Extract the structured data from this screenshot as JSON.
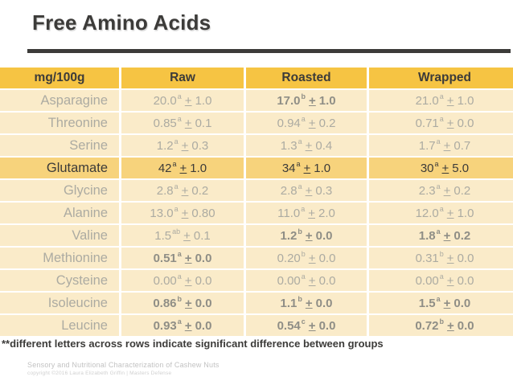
{
  "title": "Free Amino Acids",
  "colors": {
    "header_gold": "#F6C443",
    "highlight_amber": "#F7D37C",
    "row_cream": "#FAEBC9",
    "text_dark": "#3C3B39",
    "text_gray": "#ACABA2",
    "text_bold_gray": "#8F8E86"
  },
  "table": {
    "columns": [
      "mg/100g",
      "Raw",
      "Roasted",
      "Wrapped"
    ],
    "plus_minus_symbol": "+",
    "rows": [
      {
        "name": "Asparagine",
        "highlight": false,
        "cells": [
          {
            "value": "20.0",
            "sup": "a",
            "sd": "1.0",
            "bold": false
          },
          {
            "value": "17.0",
            "sup": "b",
            "sd": "1.0",
            "bold": true
          },
          {
            "value": "21.0",
            "sup": "a",
            "sd": "1.0",
            "bold": false
          }
        ]
      },
      {
        "name": "Threonine",
        "highlight": false,
        "cells": [
          {
            "value": "0.85",
            "sup": "a",
            "sd": "0.1",
            "bold": false
          },
          {
            "value": "0.94",
            "sup": "a",
            "sd": "0.2",
            "bold": false
          },
          {
            "value": "0.71",
            "sup": "a",
            "sd": "0.0",
            "bold": false
          }
        ]
      },
      {
        "name": "Serine",
        "highlight": false,
        "cells": [
          {
            "value": "1.2",
            "sup": "a",
            "sd": "0.3",
            "bold": false
          },
          {
            "value": "1.3",
            "sup": "a",
            "sd": "0.4",
            "bold": false
          },
          {
            "value": "1.7",
            "sup": "a",
            "sd": "0.7",
            "bold": false
          }
        ]
      },
      {
        "name": "Glutamate",
        "highlight": true,
        "cells": [
          {
            "value": "42",
            "sup": "a",
            "sd": "1.0",
            "bold": false
          },
          {
            "value": "34",
            "sup": "a",
            "sd": "1.0",
            "bold": false
          },
          {
            "value": "30",
            "sup": "a",
            "sd": "5.0",
            "bold": false
          }
        ]
      },
      {
        "name": "Glycine",
        "highlight": false,
        "cells": [
          {
            "value": "2.8",
            "sup": "a",
            "sd": "0.2",
            "bold": false
          },
          {
            "value": "2.8",
            "sup": "a",
            "sd": "0.3",
            "bold": false
          },
          {
            "value": "2.3",
            "sup": "a",
            "sd": "0.2",
            "bold": false
          }
        ]
      },
      {
        "name": "Alanine",
        "highlight": false,
        "cells": [
          {
            "value": "13.0",
            "sup": "a",
            "sd": "0.80",
            "bold": false
          },
          {
            "value": "11.0",
            "sup": "a",
            "sd": "2.0",
            "bold": false
          },
          {
            "value": "12.0",
            "sup": "a",
            "sd": "1.0",
            "bold": false
          }
        ]
      },
      {
        "name": "Valine",
        "highlight": false,
        "cells": [
          {
            "value": "1.5",
            "sup": "ab",
            "sd": "0.1",
            "bold": false
          },
          {
            "value": "1.2",
            "sup": "b",
            "sd": "0.0",
            "bold": true
          },
          {
            "value": "1.8",
            "sup": "a",
            "sd": "0.2",
            "bold": true
          }
        ]
      },
      {
        "name": "Methionine",
        "highlight": false,
        "cells": [
          {
            "value": "0.51",
            "sup": "a",
            "sd": "0.0",
            "bold": true
          },
          {
            "value": "0.20",
            "sup": "b",
            "sd": "0.0",
            "bold": false
          },
          {
            "value": "0.31",
            "sup": "b",
            "sd": "0.0",
            "bold": false
          }
        ]
      },
      {
        "name": "Cysteine",
        "highlight": false,
        "cells": [
          {
            "value": "0.00",
            "sup": "a",
            "sd": "0.0",
            "bold": false
          },
          {
            "value": "0.00",
            "sup": "a",
            "sd": "0.0",
            "bold": false
          },
          {
            "value": "0.00",
            "sup": "a",
            "sd": "0.0",
            "bold": false
          }
        ]
      },
      {
        "name": "Isoleucine",
        "highlight": false,
        "cells": [
          {
            "value": "0.86",
            "sup": "b",
            "sd": "0.0",
            "bold": true
          },
          {
            "value": "1.1",
            "sup": "b",
            "sd": "0.0",
            "bold": true
          },
          {
            "value": "1.5",
            "sup": "a",
            "sd": "0.0",
            "bold": true
          }
        ]
      },
      {
        "name": "Leucine",
        "highlight": false,
        "cells": [
          {
            "value": "0.93",
            "sup": "a",
            "sd": "0.0",
            "bold": true
          },
          {
            "value": "0.54",
            "sup": "c",
            "sd": "0.0",
            "bold": true
          },
          {
            "value": "0.72",
            "sup": "b",
            "sd": "0.0",
            "bold": true
          }
        ]
      }
    ]
  },
  "footnote": "**different letters across rows indicate significant difference between groups",
  "footer": {
    "line1": "Sensory and Nutritional Characterization of Cashew Nuts",
    "line2": "copyright ©2016 Laura Elizabeth Griffin | Masters Defense"
  }
}
